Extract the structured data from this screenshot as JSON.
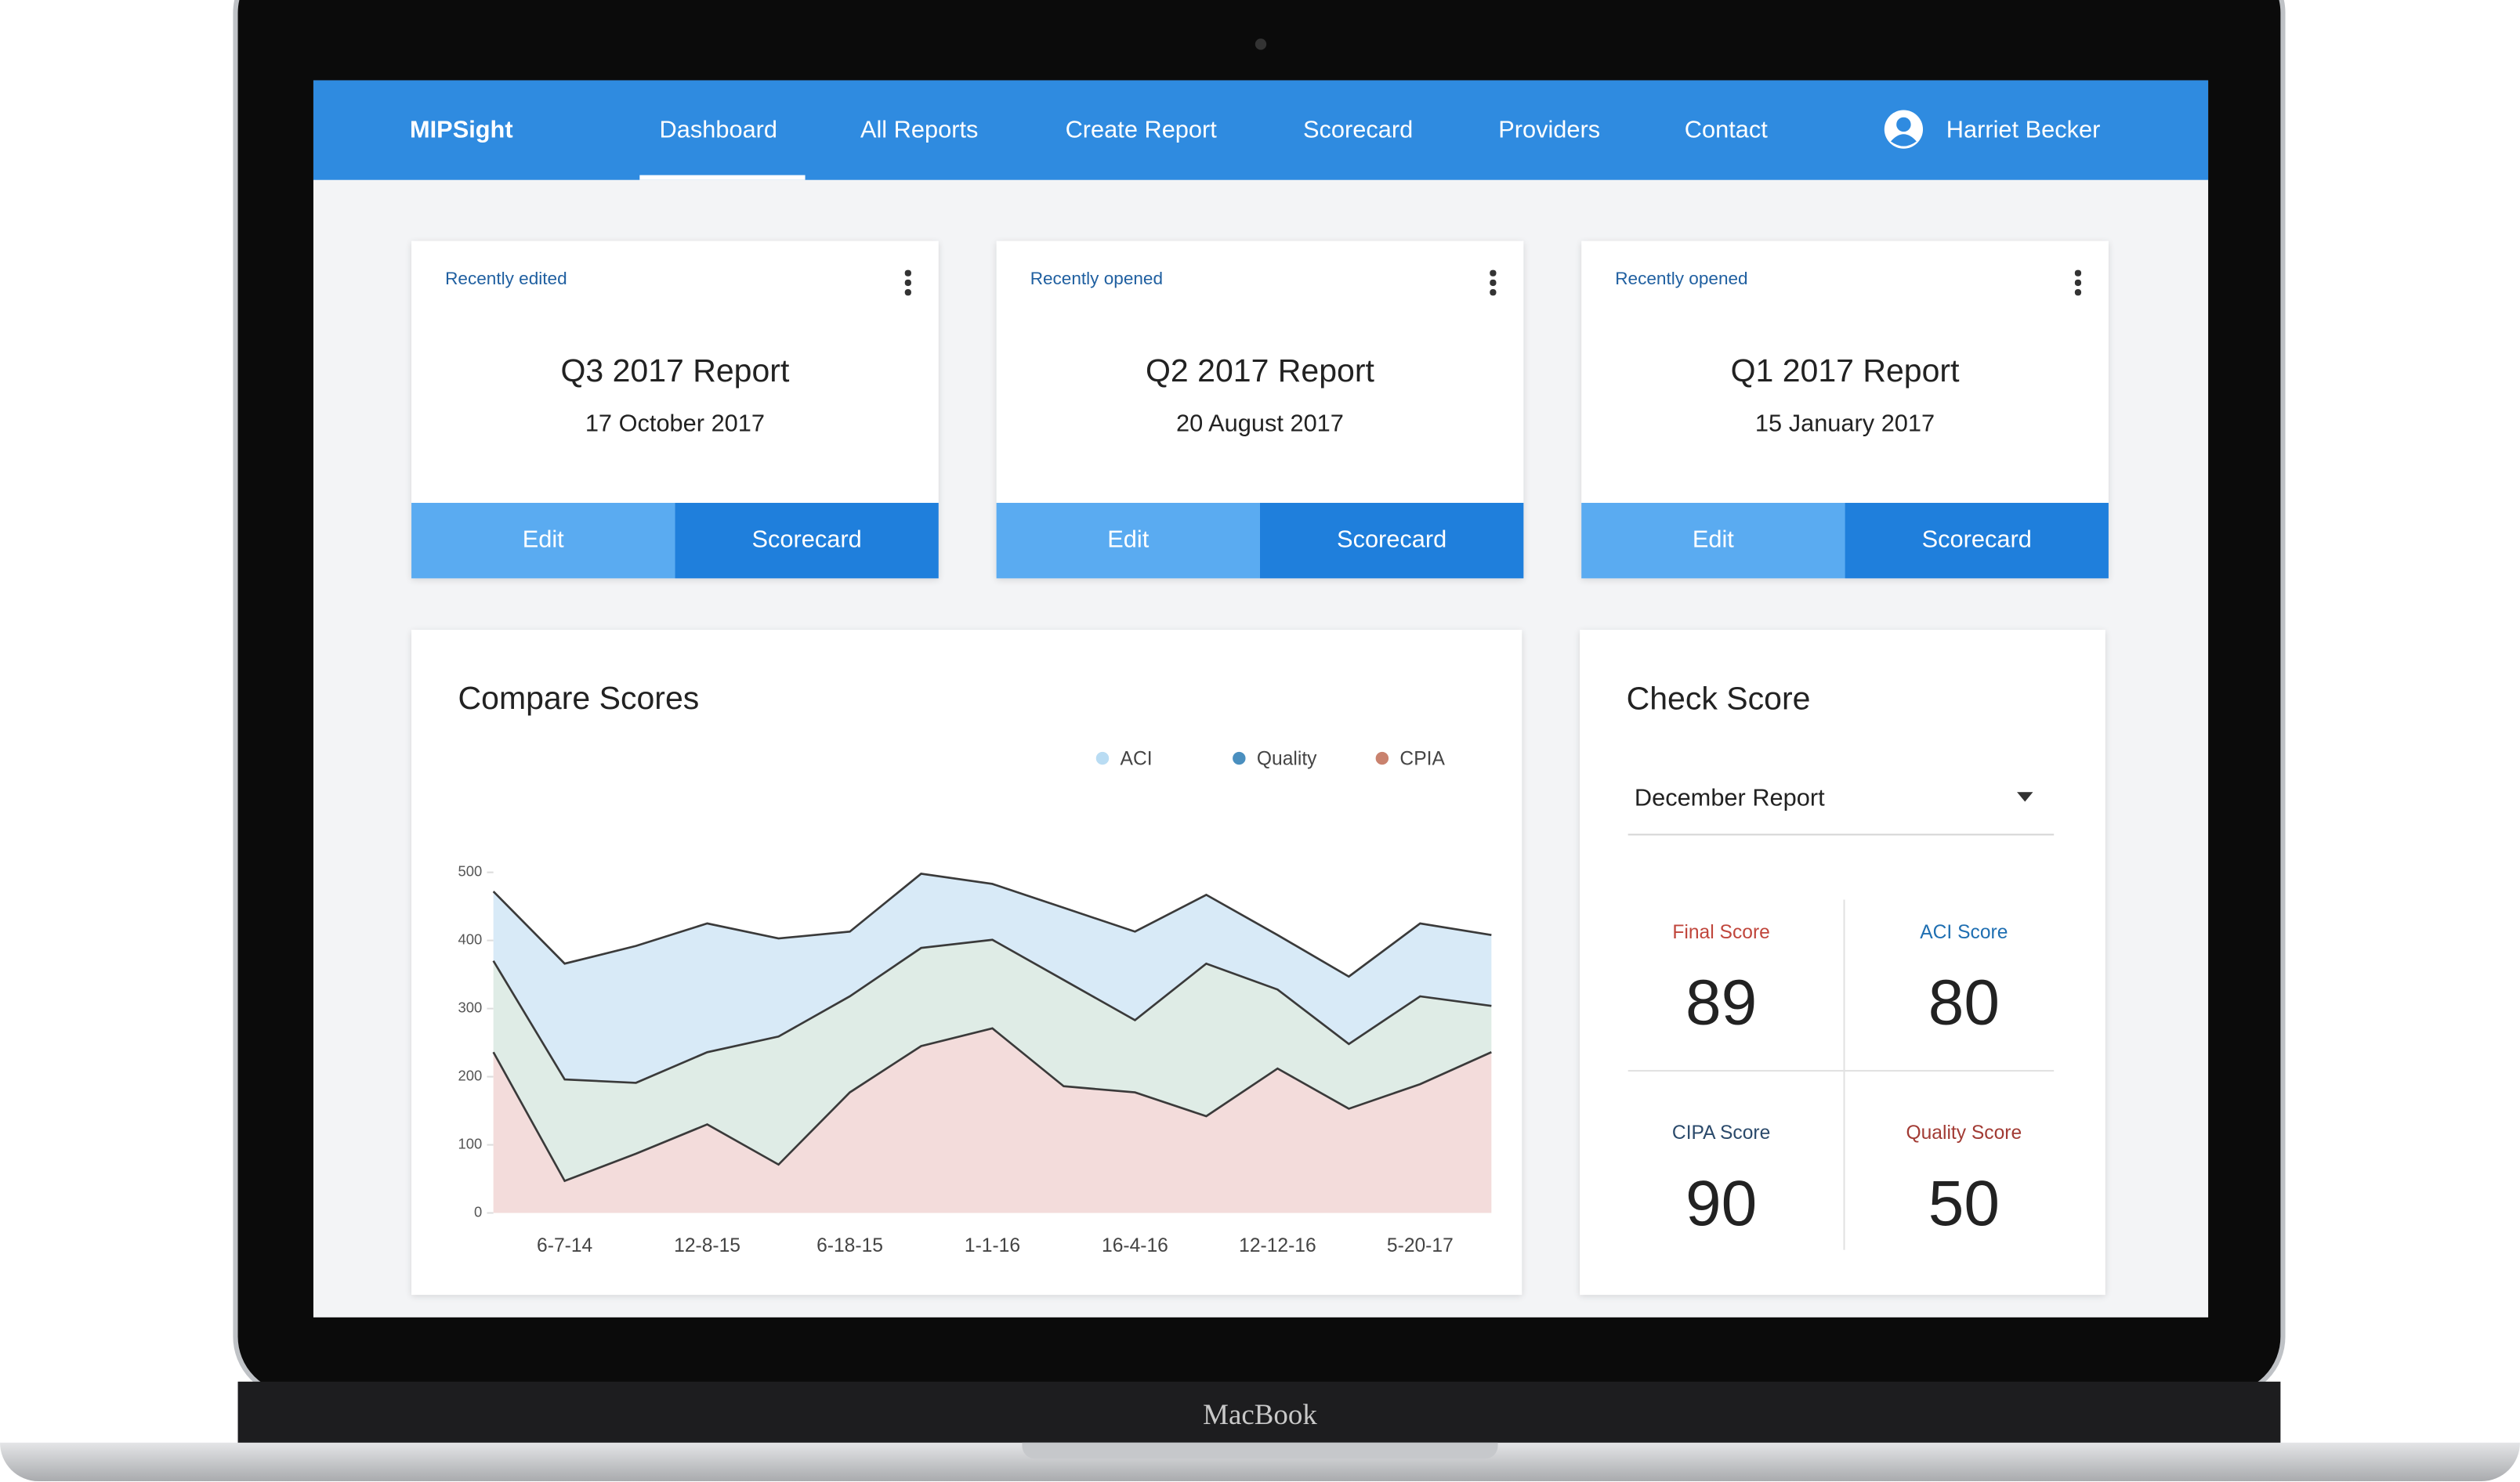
{
  "nav": {
    "brand": "MIPSight",
    "items": [
      "Dashboard",
      "All Reports",
      "Create Report",
      "Scorecard",
      "Providers",
      "Contact"
    ],
    "user": "Harriet Becker"
  },
  "report_cards": [
    {
      "tag": "Recently edited",
      "title": "Q3 2017 Report",
      "date": "17 October 2017",
      "buttons": [
        "Edit",
        "Scorecard"
      ]
    },
    {
      "tag": "Recently opened",
      "title": "Q2 2017 Report",
      "date": "20 August 2017",
      "buttons": [
        "Edit",
        "Scorecard"
      ]
    },
    {
      "tag": "Recently opened",
      "title": "Q1 2017 Report",
      "date": "15 January 2017",
      "buttons": [
        "Edit",
        "Scorecard"
      ]
    }
  ],
  "compare_scores": {
    "type": "area",
    "stacked": true,
    "title": "Compare Scores",
    "categories": [
      null,
      "6-7-14",
      null,
      "12-8-15",
      null,
      "6-18-15",
      null,
      "1-1-16",
      null,
      "16-4-16",
      null,
      "12-12-16",
      null,
      "5-20-17",
      null
    ],
    "series": [
      {
        "name": "ACI",
        "color": "#b9dcf3",
        "fill": "#d8eaf7",
        "values": [
          102,
          170,
          201,
          189,
          144,
          95,
          109,
          82,
          106,
          130,
          101,
          80,
          99,
          107,
          104
        ]
      },
      {
        "name": "Quality",
        "color": "#4a8fbf",
        "fill": "#dfece6",
        "values": [
          134,
          149,
          104,
          106,
          188,
          141,
          144,
          130,
          156,
          106,
          224,
          116,
          95,
          129,
          68
        ]
      },
      {
        "name": "CPIA",
        "color": "#c9826e",
        "fill": "#f3dcdb",
        "values": [
          236,
          47,
          87,
          130,
          71,
          177,
          245,
          271,
          186,
          177,
          142,
          212,
          153,
          189,
          236
        ]
      }
    ],
    "ylim": [
      0,
      500
    ],
    "yticks": [
      0,
      100,
      200,
      300,
      400,
      500
    ]
  },
  "check_score": {
    "title": "Check Score",
    "select": "December Report",
    "scores": [
      {
        "label": "Final Score",
        "value": 89
      },
      {
        "label": "ACI Score",
        "value": 80
      },
      {
        "label": "CIPA Score",
        "value": 90
      },
      {
        "label": "Quality Score",
        "value": 50
      }
    ]
  },
  "laptop_label": "MacBook"
}
